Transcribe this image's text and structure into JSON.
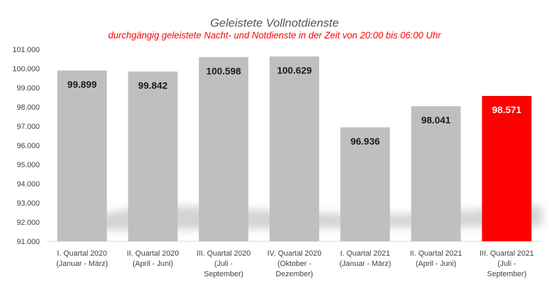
{
  "chart_data": {
    "type": "bar",
    "title": "Geleistete Vollnotdienste",
    "subtitle": "durchgängig geleistete Nacht- und Notdienste in der Zeit von 20:00 bis 06:00 Uhr",
    "categories": [
      [
        "I. Quartal 2020",
        "(Januar - März)"
      ],
      [
        "II. Quartal 2020",
        "(April - Juni)"
      ],
      [
        "III. Quartal 2020",
        "(Juli -",
        "September)"
      ],
      [
        "IV. Quartal 2020",
        "(Oktober -",
        "Dezember)"
      ],
      [
        "I. Quartal 2021",
        "(Januar - März)"
      ],
      [
        "II. Quartal 2021",
        "(April - Juni)"
      ],
      [
        "III. Quartal 2021",
        "(Juli -",
        "September)"
      ]
    ],
    "values": [
      99899,
      99842,
      100598,
      100629,
      96936,
      98041,
      98571
    ],
    "value_labels": [
      "99.899",
      "99.842",
      "100.598",
      "100.629",
      "96.936",
      "98.041",
      "98.571"
    ],
    "ylim": [
      91000,
      101000
    ],
    "yticks": [
      91000,
      92000,
      93000,
      94000,
      95000,
      96000,
      97000,
      98000,
      99000,
      100000,
      101000
    ],
    "ytick_labels": [
      "91.000",
      "92.000",
      "93.000",
      "94.000",
      "95.000",
      "96.000",
      "97.000",
      "98.000",
      "99.000",
      "100.000",
      "101.000"
    ],
    "bar_colors": [
      "#bfbfbf",
      "#bfbfbf",
      "#bfbfbf",
      "#bfbfbf",
      "#bfbfbf",
      "#bfbfbf",
      "#ff0000"
    ],
    "label_colors": [
      "#1a1a1a",
      "#1a1a1a",
      "#1a1a1a",
      "#1a1a1a",
      "#1a1a1a",
      "#1a1a1a",
      "#ffffff"
    ],
    "grid": false,
    "legend": "none",
    "xlabel": "",
    "ylabel": ""
  }
}
